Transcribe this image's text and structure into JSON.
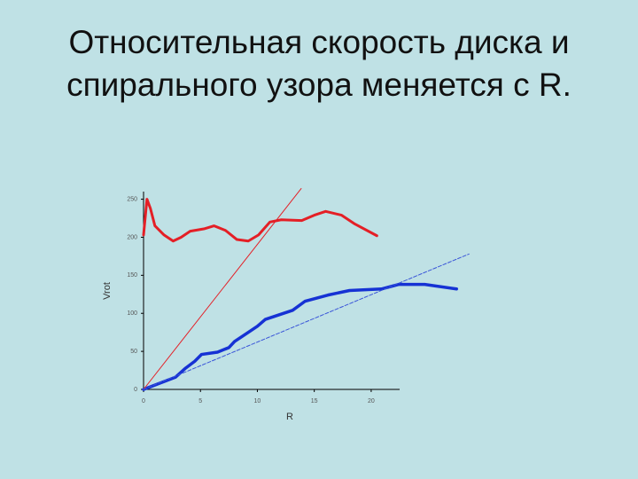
{
  "chart_data": {
    "type": "line",
    "title_lines": [
      "Относительная скорость диска и",
      "спирального узора меняется с R."
    ],
    "xlabel": "R",
    "ylabel": "Vrot",
    "xlim": [
      0,
      22.5
    ],
    "ylim": [
      0,
      260
    ],
    "xticks": [
      0,
      5,
      10,
      15,
      20
    ],
    "yticks": [
      0,
      50,
      100,
      150,
      200,
      250
    ],
    "series": [
      {
        "color": "#e41f26",
        "width": 3,
        "style": "solid",
        "x": [
          0,
          0.3,
          0.6,
          1,
          1.8,
          2.6,
          3.3,
          4.1,
          5.3,
          6.2,
          7.2,
          8.2,
          9.2,
          10.1,
          11.1,
          12.1,
          13.9,
          15,
          16,
          17.4,
          18.5,
          20.5
        ],
        "values": [
          203,
          250,
          238,
          215,
          203,
          195,
          200,
          208,
          211,
          215,
          209,
          197,
          195,
          203,
          220,
          223,
          222,
          229,
          234,
          229,
          218,
          202
        ]
      },
      {
        "color": "#1632d4",
        "width": 3.5,
        "style": "solid",
        "x": [
          0,
          1.4,
          2.8,
          3.7,
          4.5,
          5.1,
          6.5,
          7.5,
          8,
          9.2,
          10,
          10.7,
          11.9,
          13.1,
          14.2,
          16.2,
          18.1,
          20.9,
          22.4,
          24.7,
          27.5
        ],
        "values": [
          0,
          8,
          16,
          28,
          37,
          46,
          49,
          55,
          63,
          75,
          83,
          92,
          98,
          104,
          116,
          124,
          130,
          132,
          138,
          138,
          132
        ]
      },
      {
        "color": "#e41f26",
        "width": 1,
        "style": "solid",
        "x": [
          0,
          13.85
        ],
        "values": [
          0,
          264
        ]
      },
      {
        "color": "#3a55d8",
        "width": 1,
        "style": "dashed",
        "x": [
          0,
          28.6
        ],
        "values": [
          0,
          178
        ]
      }
    ]
  }
}
